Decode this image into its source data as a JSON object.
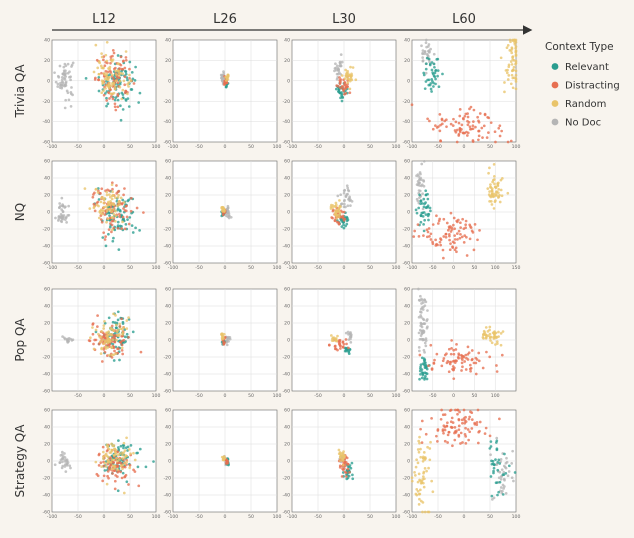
{
  "chart_data": {
    "type": "scatter",
    "columns": [
      "L12",
      "L26",
      "L30",
      "L60"
    ],
    "rows": [
      "Trivia QA",
      "NQ",
      "Pop QA",
      "Strategy QA"
    ],
    "legend": {
      "title": "Context Type",
      "entries": [
        {
          "name": "Relevant",
          "color": "#2a9d8f"
        },
        {
          "name": "Distracting",
          "color": "#e76f51"
        },
        {
          "name": "Random",
          "color": "#e9c46a"
        },
        {
          "name": "No Doc",
          "color": "#b5b5b5"
        }
      ]
    },
    "panels": [
      {
        "row": 0,
        "col": 0,
        "xlim": [
          -100,
          100
        ],
        "ylim": [
          -60,
          40
        ],
        "xticks": [
          -100,
          -50,
          0,
          50,
          100
        ],
        "yticks": [
          -60,
          -40,
          -20,
          0,
          20,
          40
        ],
        "clusters": [
          {
            "type": "No Doc",
            "cx": -75,
            "cy": 2,
            "sx": 8,
            "sy": 10,
            "n": 60
          },
          {
            "type": "Relevant",
            "cx": 25,
            "cy": -2,
            "sx": 17,
            "sy": 12,
            "n": 90
          },
          {
            "type": "Distracting",
            "cx": 20,
            "cy": 2,
            "sx": 18,
            "sy": 12,
            "n": 90
          },
          {
            "type": "Random",
            "cx": 15,
            "cy": 5,
            "sx": 16,
            "sy": 11,
            "n": 80
          }
        ]
      },
      {
        "row": 0,
        "col": 1,
        "xlim": [
          -100,
          100
        ],
        "ylim": [
          -60,
          40
        ],
        "xticks": [
          -100,
          -50,
          0,
          50,
          100
        ],
        "yticks": [
          -60,
          -40,
          -20,
          0,
          20,
          40
        ],
        "clusters": [
          {
            "type": "No Doc",
            "cx": -4,
            "cy": 2,
            "sx": 2,
            "sy": 3,
            "n": 20
          },
          {
            "type": "Relevant",
            "cx": 3,
            "cy": -2,
            "sx": 1.5,
            "sy": 2,
            "n": 15
          },
          {
            "type": "Distracting",
            "cx": 2,
            "cy": 0,
            "sx": 1.5,
            "sy": 2,
            "n": 15
          },
          {
            "type": "Random",
            "cx": 5,
            "cy": 3,
            "sx": 1.5,
            "sy": 2,
            "n": 15
          }
        ]
      },
      {
        "row": 0,
        "col": 2,
        "xlim": [
          -100,
          100
        ],
        "ylim": [
          -60,
          40
        ],
        "xticks": [
          -100,
          -50,
          0,
          50,
          100
        ],
        "yticks": [
          -60,
          -40,
          -20,
          0,
          20,
          40
        ],
        "clusters": [
          {
            "type": "No Doc",
            "cx": -10,
            "cy": 14,
            "sx": 5,
            "sy": 6,
            "n": 25
          },
          {
            "type": "Relevant",
            "cx": -5,
            "cy": -10,
            "sx": 5,
            "sy": 4,
            "n": 30
          },
          {
            "type": "Distracting",
            "cx": 0,
            "cy": -6,
            "sx": 6,
            "sy": 5,
            "n": 30
          },
          {
            "type": "Random",
            "cx": 10,
            "cy": 5,
            "sx": 5,
            "sy": 4,
            "n": 30
          }
        ]
      },
      {
        "row": 0,
        "col": 3,
        "xlim": [
          -100,
          100
        ],
        "ylim": [
          -60,
          40
        ],
        "xticks": [
          -100,
          -50,
          0,
          50,
          100
        ],
        "yticks": [
          -60,
          -40,
          -20,
          0,
          20,
          40
        ],
        "clusters": [
          {
            "type": "No Doc",
            "cx": -72,
            "cy": 28,
            "sx": 6,
            "sy": 8,
            "n": 30
          },
          {
            "type": "Relevant",
            "cx": -60,
            "cy": 5,
            "sx": 8,
            "sy": 10,
            "n": 40
          },
          {
            "type": "Distracting",
            "cx": 5,
            "cy": -45,
            "sx": 38,
            "sy": 10,
            "n": 90
          },
          {
            "type": "Random",
            "cx": 95,
            "cy": 22,
            "sx": 10,
            "sy": 16,
            "n": 60
          }
        ]
      },
      {
        "row": 1,
        "col": 0,
        "xlim": [
          -100,
          100
        ],
        "ylim": [
          -60,
          60
        ],
        "xticks": [
          -100,
          -50,
          0,
          50,
          100
        ],
        "yticks": [
          -60,
          -40,
          -20,
          0,
          20,
          40,
          60
        ],
        "clusters": [
          {
            "type": "No Doc",
            "cx": -80,
            "cy": 0,
            "sx": 6,
            "sy": 8,
            "n": 40
          },
          {
            "type": "Relevant",
            "cx": 25,
            "cy": -5,
            "sx": 16,
            "sy": 14,
            "n": 90
          },
          {
            "type": "Distracting",
            "cx": 15,
            "cy": 5,
            "sx": 18,
            "sy": 14,
            "n": 90
          },
          {
            "type": "Random",
            "cx": 10,
            "cy": 10,
            "sx": 15,
            "sy": 12,
            "n": 70
          }
        ]
      },
      {
        "row": 1,
        "col": 1,
        "xlim": [
          -100,
          100
        ],
        "ylim": [
          -60,
          60
        ],
        "xticks": [
          -100,
          -50,
          0,
          50,
          100
        ],
        "yticks": [
          -60,
          -40,
          -20,
          0,
          20,
          40,
          60
        ],
        "clusters": [
          {
            "type": "No Doc",
            "cx": 5,
            "cy": 0,
            "sx": 3,
            "sy": 4,
            "n": 20
          },
          {
            "type": "Relevant",
            "cx": -3,
            "cy": -2,
            "sx": 1.5,
            "sy": 2,
            "n": 15
          },
          {
            "type": "Distracting",
            "cx": -2,
            "cy": 0,
            "sx": 1.5,
            "sy": 2,
            "n": 15
          },
          {
            "type": "Random",
            "cx": -3,
            "cy": 3,
            "sx": 1.5,
            "sy": 2,
            "n": 15
          }
        ]
      },
      {
        "row": 1,
        "col": 2,
        "xlim": [
          -100,
          100
        ],
        "ylim": [
          -60,
          60
        ],
        "xticks": [
          -100,
          -50,
          0,
          50,
          100
        ],
        "yticks": [
          -60,
          -40,
          -20,
          0,
          20,
          40,
          60
        ],
        "clusters": [
          {
            "type": "No Doc",
            "cx": 5,
            "cy": 18,
            "sx": 6,
            "sy": 8,
            "n": 30
          },
          {
            "type": "Relevant",
            "cx": 0,
            "cy": -10,
            "sx": 6,
            "sy": 5,
            "n": 30
          },
          {
            "type": "Distracting",
            "cx": -10,
            "cy": -5,
            "sx": 8,
            "sy": 6,
            "n": 35
          },
          {
            "type": "Random",
            "cx": -15,
            "cy": 2,
            "sx": 6,
            "sy": 5,
            "n": 30
          }
        ]
      },
      {
        "row": 1,
        "col": 3,
        "xlim": [
          -100,
          150
        ],
        "ylim": [
          -60,
          60
        ],
        "xticks": [
          -100,
          -50,
          0,
          50,
          100,
          150
        ],
        "yticks": [
          -60,
          -40,
          -20,
          0,
          20,
          40,
          60
        ],
        "clusters": [
          {
            "type": "No Doc",
            "cx": -80,
            "cy": 30,
            "sx": 6,
            "sy": 12,
            "n": 35
          },
          {
            "type": "Relevant",
            "cx": -70,
            "cy": 0,
            "sx": 8,
            "sy": 12,
            "n": 40
          },
          {
            "type": "Distracting",
            "cx": -10,
            "cy": -25,
            "sx": 40,
            "sy": 12,
            "n": 90
          },
          {
            "type": "Random",
            "cx": 100,
            "cy": 25,
            "sx": 10,
            "sy": 12,
            "n": 55
          }
        ]
      },
      {
        "row": 2,
        "col": 0,
        "xlim": [
          -100,
          100
        ],
        "ylim": [
          -60,
          60
        ],
        "xticks": [
          -50,
          0,
          50,
          100
        ],
        "yticks": [
          -60,
          -40,
          -20,
          0,
          20,
          40,
          60
        ],
        "clusters": [
          {
            "type": "No Doc",
            "cx": -70,
            "cy": 0,
            "sx": 4,
            "sy": 2,
            "n": 15
          },
          {
            "type": "Relevant",
            "cx": 25,
            "cy": 5,
            "sx": 14,
            "sy": 12,
            "n": 80
          },
          {
            "type": "Distracting",
            "cx": 10,
            "cy": 0,
            "sx": 18,
            "sy": 10,
            "n": 90
          },
          {
            "type": "Random",
            "cx": 15,
            "cy": 5,
            "sx": 15,
            "sy": 10,
            "n": 70
          }
        ]
      },
      {
        "row": 2,
        "col": 1,
        "xlim": [
          -100,
          100
        ],
        "ylim": [
          -60,
          60
        ],
        "xticks": [
          -50,
          0,
          50,
          100
        ],
        "yticks": [
          -60,
          -40,
          -20,
          0,
          20,
          40,
          60
        ],
        "clusters": [
          {
            "type": "No Doc",
            "cx": 5,
            "cy": 0,
            "sx": 2,
            "sy": 3,
            "n": 15
          },
          {
            "type": "Relevant",
            "cx": -3,
            "cy": -2,
            "sx": 1.5,
            "sy": 2,
            "n": 12
          },
          {
            "type": "Distracting",
            "cx": -2,
            "cy": 0,
            "sx": 1.5,
            "sy": 2,
            "n": 12
          },
          {
            "type": "Random",
            "cx": -4,
            "cy": 4,
            "sx": 1.5,
            "sy": 2,
            "n": 12
          }
        ]
      },
      {
        "row": 2,
        "col": 2,
        "xlim": [
          -100,
          100
        ],
        "ylim": [
          -60,
          60
        ],
        "xticks": [
          -50,
          0,
          50,
          100
        ],
        "yticks": [
          -60,
          -40,
          -20,
          0,
          20,
          40,
          60
        ],
        "clusters": [
          {
            "type": "No Doc",
            "cx": 10,
            "cy": 5,
            "sx": 4,
            "sy": 4,
            "n": 15
          },
          {
            "type": "Relevant",
            "cx": 5,
            "cy": -12,
            "sx": 3,
            "sy": 2,
            "n": 15
          },
          {
            "type": "Distracting",
            "cx": -10,
            "cy": -5,
            "sx": 8,
            "sy": 4,
            "n": 25
          },
          {
            "type": "Random",
            "cx": -20,
            "cy": 2,
            "sx": 4,
            "sy": 2,
            "n": 12
          }
        ]
      },
      {
        "row": 2,
        "col": 3,
        "xlim": [
          -100,
          150
        ],
        "ylim": [
          -60,
          60
        ],
        "xticks": [
          -50,
          0,
          50,
          100
        ],
        "yticks": [
          -60,
          -40,
          -20,
          0,
          20,
          40,
          60
        ],
        "clusters": [
          {
            "type": "No Doc",
            "cx": -75,
            "cy": 20,
            "sx": 6,
            "sy": 18,
            "n": 60
          },
          {
            "type": "Relevant",
            "cx": -70,
            "cy": -35,
            "sx": 6,
            "sy": 8,
            "n": 35
          },
          {
            "type": "Distracting",
            "cx": 10,
            "cy": -25,
            "sx": 40,
            "sy": 10,
            "n": 80
          },
          {
            "type": "Random",
            "cx": 90,
            "cy": 5,
            "sx": 12,
            "sy": 6,
            "n": 45
          }
        ]
      },
      {
        "row": 3,
        "col": 0,
        "xlim": [
          -100,
          100
        ],
        "ylim": [
          -60,
          60
        ],
        "xticks": [
          -100,
          -50,
          0,
          50,
          100
        ],
        "yticks": [
          -60,
          -40,
          -20,
          0,
          20,
          40,
          60
        ],
        "clusters": [
          {
            "type": "No Doc",
            "cx": -75,
            "cy": 0,
            "sx": 7,
            "sy": 5,
            "n": 30
          },
          {
            "type": "Relevant",
            "cx": 30,
            "cy": 0,
            "sx": 15,
            "sy": 10,
            "n": 80
          },
          {
            "type": "Distracting",
            "cx": 20,
            "cy": -5,
            "sx": 18,
            "sy": 12,
            "n": 80
          },
          {
            "type": "Random",
            "cx": 25,
            "cy": 5,
            "sx": 15,
            "sy": 10,
            "n": 70
          }
        ]
      },
      {
        "row": 3,
        "col": 1,
        "xlim": [
          -100,
          100
        ],
        "ylim": [
          -60,
          60
        ],
        "xticks": [
          -100,
          -50,
          0,
          50,
          100
        ],
        "yticks": [
          -60,
          -40,
          -20,
          0,
          20,
          40,
          60
        ],
        "clusters": [
          {
            "type": "No Doc",
            "cx": 2,
            "cy": 0,
            "sx": 2,
            "sy": 3,
            "n": 15
          },
          {
            "type": "Relevant",
            "cx": 5,
            "cy": -2,
            "sx": 1.5,
            "sy": 2,
            "n": 12
          },
          {
            "type": "Distracting",
            "cx": 3,
            "cy": 0,
            "sx": 1.5,
            "sy": 2,
            "n": 12
          },
          {
            "type": "Random",
            "cx": -2,
            "cy": 3,
            "sx": 1.5,
            "sy": 2,
            "n": 12
          }
        ]
      },
      {
        "row": 3,
        "col": 2,
        "xlim": [
          -100,
          100
        ],
        "ylim": [
          -60,
          60
        ],
        "xticks": [
          -100,
          -50,
          0,
          50,
          100
        ],
        "yticks": [
          -60,
          -40,
          -20,
          0,
          20,
          40,
          60
        ],
        "clusters": [
          {
            "type": "No Doc",
            "cx": -2,
            "cy": 2,
            "sx": 3,
            "sy": 4,
            "n": 15
          },
          {
            "type": "Relevant",
            "cx": 8,
            "cy": -12,
            "sx": 4,
            "sy": 4,
            "n": 25
          },
          {
            "type": "Distracting",
            "cx": 0,
            "cy": -5,
            "sx": 5,
            "sy": 6,
            "n": 30
          },
          {
            "type": "Random",
            "cx": -5,
            "cy": 5,
            "sx": 4,
            "sy": 4,
            "n": 20
          }
        ]
      },
      {
        "row": 3,
        "col": 3,
        "xlim": [
          -100,
          100
        ],
        "ylim": [
          -60,
          60
        ],
        "xticks": [
          -100,
          -50,
          0,
          50,
          100
        ],
        "yticks": [
          -60,
          -40,
          -20,
          0,
          20,
          40,
          60
        ],
        "clusters": [
          {
            "type": "No Doc",
            "cx": 75,
            "cy": -15,
            "sx": 10,
            "sy": 15,
            "n": 40
          },
          {
            "type": "Relevant",
            "cx": 65,
            "cy": -5,
            "sx": 10,
            "sy": 15,
            "n": 35
          },
          {
            "type": "Distracting",
            "cx": -15,
            "cy": 40,
            "sx": 30,
            "sy": 12,
            "n": 90
          },
          {
            "type": "Random",
            "cx": -80,
            "cy": -15,
            "sx": 8,
            "sy": 20,
            "n": 60
          }
        ]
      }
    ]
  }
}
